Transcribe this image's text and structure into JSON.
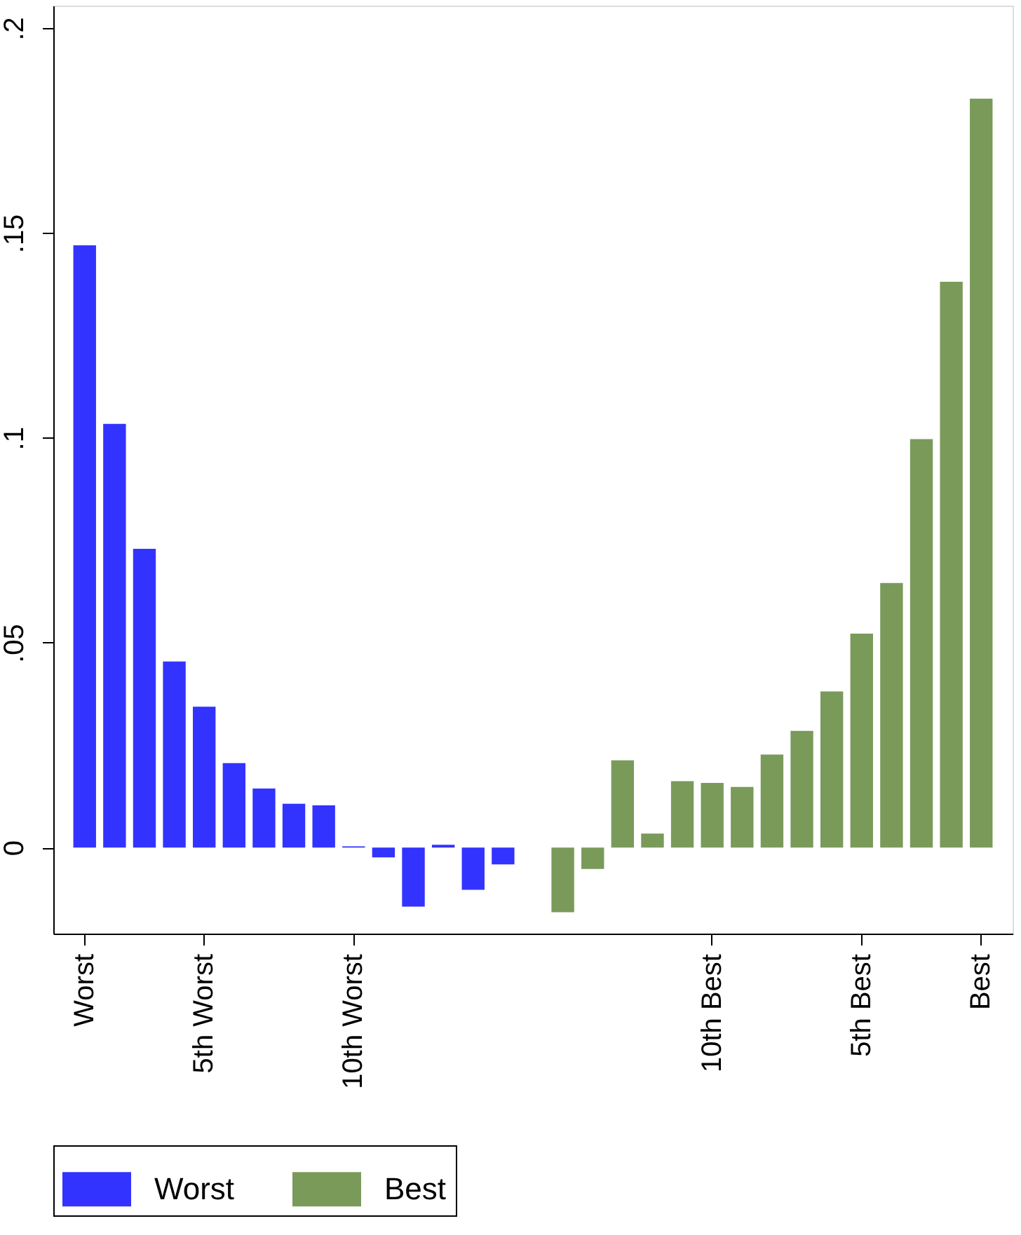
{
  "chart_data": {
    "type": "bar",
    "categories": [
      "Worst",
      null,
      null,
      null,
      "5th Worst",
      null,
      null,
      null,
      null,
      "10th Worst",
      null,
      null,
      null,
      null,
      null,
      null,
      null,
      null,
      null,
      null,
      null,
      "10th Best",
      null,
      null,
      null,
      null,
      "5th Best",
      null,
      null,
      null,
      "Best"
    ],
    "series": [
      {
        "name": "Worst",
        "color": "#3333ff",
        "values": [
          0.147,
          0.1034,
          0.0729,
          0.0454,
          0.0344,
          0.0206,
          0.0144,
          0.0107,
          0.0103,
          0.0003,
          -0.0024,
          -0.0144,
          0.0007,
          -0.0103,
          -0.0041,
          null,
          null,
          null,
          null,
          null,
          null,
          null,
          null,
          null,
          null,
          null,
          null,
          null,
          null,
          null,
          null
        ]
      },
      {
        "name": "Best",
        "color": "#7a9a5a",
        "values": [
          null,
          null,
          null,
          null,
          null,
          null,
          null,
          null,
          null,
          null,
          null,
          null,
          null,
          null,
          null,
          null,
          -0.0158,
          -0.0052,
          0.0213,
          0.0034,
          0.0162,
          0.0158,
          0.0148,
          0.0227,
          0.0285,
          0.0381,
          0.0522,
          0.0646,
          0.0997,
          0.1381,
          0.1828
        ]
      }
    ],
    "ylim": [
      -0.021,
      0.2055
    ],
    "yticks": [
      {
        "value": 0,
        "label": "0"
      },
      {
        "value": 0.05,
        "label": ".05"
      },
      {
        "value": 0.1,
        "label": ".1"
      },
      {
        "value": 0.15,
        "label": ".15"
      },
      {
        "value": 0.2,
        "label": ".2"
      }
    ],
    "grid": false,
    "legend": "bottom"
  }
}
